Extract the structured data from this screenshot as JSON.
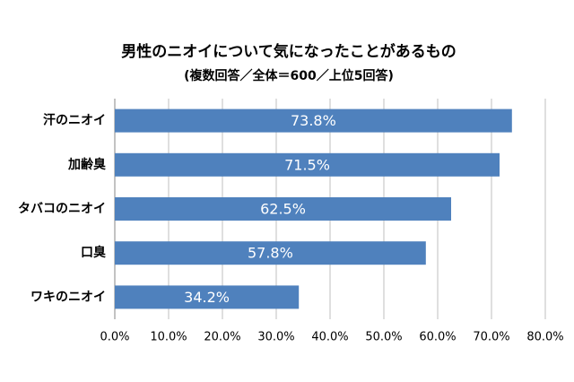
{
  "chart_data": {
    "type": "bar",
    "title": "男性のニオイについて気になったことがあるもの",
    "subtitle": "(複数回答／全体＝600／上位5回答)",
    "categories": [
      "汗のニオイ",
      "加齢臭",
      "タバコのニオイ",
      "口臭",
      "ワキのニオイ"
    ],
    "values": [
      73.8,
      71.5,
      62.5,
      57.8,
      34.2
    ],
    "value_labels": [
      "73.8%",
      "71.5%",
      "62.5%",
      "57.8%",
      "34.2%"
    ],
    "color": "#4f81bd",
    "xlim": [
      0,
      80
    ],
    "xticks": [
      {
        "value": 0,
        "label": "0.0%"
      },
      {
        "value": 10,
        "label": "10.0%"
      },
      {
        "value": 20,
        "label": "20.0%"
      },
      {
        "value": 30,
        "label": "30.0%"
      },
      {
        "value": 40,
        "label": "40.0%"
      },
      {
        "value": 50,
        "label": "50.0%"
      },
      {
        "value": 60,
        "label": "60.0%"
      },
      {
        "value": 70,
        "label": "70.0%"
      },
      {
        "value": 80,
        "label": "80.0%"
      }
    ],
    "grid": true
  }
}
